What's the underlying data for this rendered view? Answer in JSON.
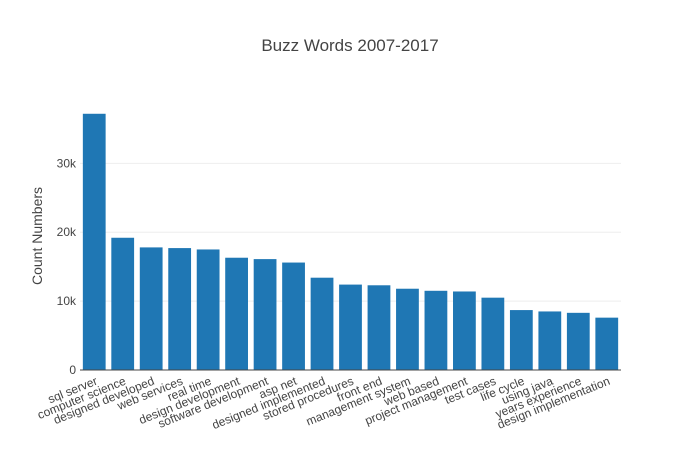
{
  "chart_data": {
    "type": "bar",
    "title": "Buzz Words 2007-2017",
    "xlabel": "",
    "ylabel": "Count Numbers",
    "categories": [
      "sql server",
      "computer science",
      "designed developed",
      "web services",
      "real time",
      "design development",
      "software development",
      "asp net",
      "designed implemented",
      "stored procedures",
      "front end",
      "management system",
      "web based",
      "project management",
      "test cases",
      "life cycle",
      "using java",
      "years experience",
      "design implementation"
    ],
    "values": [
      37200,
      19200,
      17800,
      17700,
      17500,
      16300,
      16100,
      15600,
      13400,
      12400,
      12300,
      11800,
      11500,
      11400,
      10500,
      8700,
      8500,
      8300,
      7600
    ],
    "ylim": [
      0,
      39200
    ],
    "yticks": [
      0,
      10000,
      20000,
      30000
    ],
    "ytick_labels": [
      "0",
      "10k",
      "20k",
      "30k"
    ],
    "grid": true,
    "legend": "none",
    "bar_color": "#1f77b4",
    "grid_color": "#eeeeee",
    "axis_color": "#444444"
  }
}
